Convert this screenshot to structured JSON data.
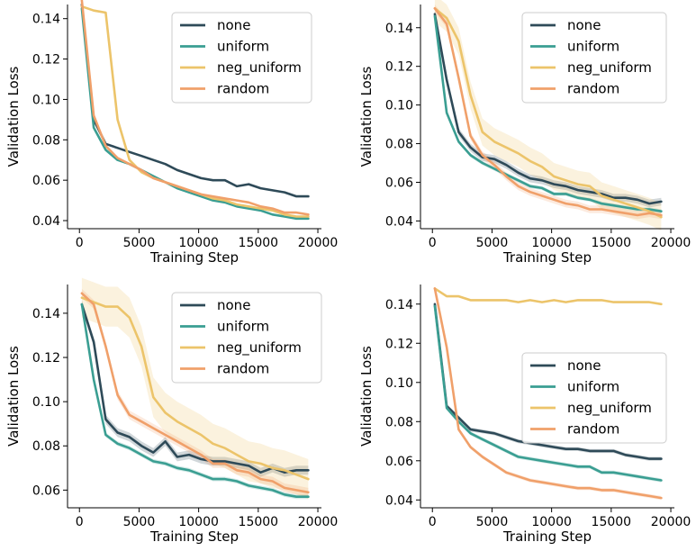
{
  "figure": {
    "background": "#ffffff"
  },
  "chart_data": [
    {
      "type": "line",
      "xlabel": "Training Step",
      "ylabel": "Validation Loss",
      "xlim": [
        -1000,
        20300
      ],
      "ylim": [
        0.036,
        0.147
      ],
      "xticks": [
        0,
        5000,
        10000,
        15000,
        20000
      ],
      "yticks": [
        0.04,
        0.06,
        0.08,
        0.1,
        0.12,
        0.14
      ],
      "grid": false,
      "legend": "top-right",
      "x": [
        200,
        1200,
        2200,
        3200,
        4200,
        5200,
        6200,
        7200,
        8200,
        9200,
        10200,
        11200,
        12200,
        13200,
        14200,
        15200,
        16200,
        17200,
        18200,
        19200
      ],
      "series": [
        {
          "name": "none",
          "color": "#2e4a58",
          "values": [
            0.147,
            0.09,
            0.078,
            0.076,
            0.074,
            0.072,
            0.07,
            0.068,
            0.065,
            0.063,
            0.061,
            0.06,
            0.06,
            0.057,
            0.058,
            0.056,
            0.055,
            0.054,
            0.052,
            0.052
          ],
          "band": 0
        },
        {
          "name": "uniform",
          "color": "#3a9e92",
          "values": [
            0.145,
            0.086,
            0.075,
            0.07,
            0.068,
            0.065,
            0.062,
            0.059,
            0.056,
            0.054,
            0.052,
            0.05,
            0.049,
            0.047,
            0.046,
            0.045,
            0.043,
            0.042,
            0.041,
            0.041
          ],
          "band": 0
        },
        {
          "name": "neg_uniform",
          "color": "#ecc46a",
          "values": [
            0.146,
            0.144,
            0.143,
            0.09,
            0.07,
            0.064,
            0.061,
            0.059,
            0.057,
            0.055,
            0.053,
            0.051,
            0.05,
            0.048,
            0.047,
            0.046,
            0.045,
            0.043,
            0.042,
            0.042
          ],
          "band": 0
        },
        {
          "name": "random",
          "color": "#f0a06a",
          "values": [
            0.149,
            0.092,
            0.077,
            0.071,
            0.068,
            0.065,
            0.061,
            0.059,
            0.057,
            0.055,
            0.053,
            0.052,
            0.051,
            0.05,
            0.049,
            0.047,
            0.046,
            0.044,
            0.044,
            0.043
          ],
          "band": 0
        }
      ]
    },
    {
      "type": "line",
      "xlabel": "Training Step",
      "ylabel": "Validation Loss",
      "xlim": [
        -1000,
        20300
      ],
      "ylim": [
        0.036,
        0.152
      ],
      "xticks": [
        0,
        5000,
        10000,
        15000,
        20000
      ],
      "yticks": [
        0.04,
        0.06,
        0.08,
        0.1,
        0.12,
        0.14
      ],
      "grid": false,
      "legend": "top-right",
      "x": [
        200,
        1200,
        2200,
        3200,
        4200,
        5200,
        6200,
        7200,
        8200,
        9200,
        10200,
        11200,
        12200,
        13200,
        14200,
        15200,
        16200,
        17200,
        18200,
        19200
      ],
      "series": [
        {
          "name": "none",
          "color": "#2e4a58",
          "values": [
            0.147,
            0.113,
            0.086,
            0.078,
            0.073,
            0.072,
            0.069,
            0.065,
            0.062,
            0.061,
            0.059,
            0.058,
            0.056,
            0.055,
            0.054,
            0.052,
            0.052,
            0.051,
            0.049,
            0.05
          ],
          "band": 0.002
        },
        {
          "name": "uniform",
          "color": "#3a9e92",
          "values": [
            0.146,
            0.096,
            0.081,
            0.074,
            0.07,
            0.067,
            0.064,
            0.061,
            0.058,
            0.057,
            0.054,
            0.054,
            0.052,
            0.051,
            0.049,
            0.048,
            0.047,
            0.046,
            0.046,
            0.045
          ],
          "band": 0.001
        },
        {
          "name": "neg_uniform",
          "color": "#ecc46a",
          "values": [
            0.15,
            0.145,
            0.133,
            0.105,
            0.086,
            0.081,
            0.078,
            0.075,
            0.071,
            0.068,
            0.063,
            0.061,
            0.059,
            0.058,
            0.053,
            0.051,
            0.049,
            0.047,
            0.045,
            0.042
          ],
          "band": 0.007
        },
        {
          "name": "random",
          "color": "#f0a06a",
          "values": [
            0.15,
            0.142,
            0.114,
            0.084,
            0.074,
            0.069,
            0.063,
            0.058,
            0.055,
            0.053,
            0.051,
            0.049,
            0.048,
            0.046,
            0.046,
            0.045,
            0.044,
            0.043,
            0.044,
            0.043
          ],
          "band": 0.002
        }
      ]
    },
    {
      "type": "line",
      "xlabel": "Training Step",
      "ylabel": "Validation Loss",
      "xlim": [
        -1000,
        20300
      ],
      "ylim": [
        0.052,
        0.153
      ],
      "xticks": [
        0,
        5000,
        10000,
        15000,
        20000
      ],
      "yticks": [
        0.06,
        0.08,
        0.1,
        0.12,
        0.14
      ],
      "grid": false,
      "legend": "top-right",
      "x": [
        200,
        1200,
        2200,
        3200,
        4200,
        5200,
        6200,
        7200,
        8200,
        9200,
        10200,
        11200,
        12200,
        13200,
        14200,
        15200,
        16200,
        17200,
        18200,
        19200
      ],
      "series": [
        {
          "name": "none",
          "color": "#2e4a58",
          "values": [
            0.144,
            0.127,
            0.092,
            0.086,
            0.084,
            0.08,
            0.077,
            0.082,
            0.075,
            0.076,
            0.074,
            0.073,
            0.073,
            0.072,
            0.071,
            0.068,
            0.07,
            0.068,
            0.069,
            0.069
          ],
          "band": 0.002
        },
        {
          "name": "uniform",
          "color": "#3a9e92",
          "values": [
            0.144,
            0.11,
            0.085,
            0.081,
            0.079,
            0.076,
            0.073,
            0.072,
            0.07,
            0.069,
            0.067,
            0.065,
            0.065,
            0.064,
            0.062,
            0.061,
            0.06,
            0.058,
            0.057,
            0.057
          ],
          "band": 0.001
        },
        {
          "name": "neg_uniform",
          "color": "#ecc46a",
          "values": [
            0.147,
            0.145,
            0.143,
            0.143,
            0.138,
            0.125,
            0.102,
            0.095,
            0.091,
            0.088,
            0.085,
            0.081,
            0.079,
            0.076,
            0.073,
            0.072,
            0.07,
            0.069,
            0.067,
            0.065
          ],
          "band": 0.009
        },
        {
          "name": "random",
          "color": "#f0a06a",
          "values": [
            0.149,
            0.144,
            0.125,
            0.103,
            0.094,
            0.091,
            0.088,
            0.085,
            0.082,
            0.079,
            0.076,
            0.072,
            0.072,
            0.069,
            0.068,
            0.065,
            0.064,
            0.061,
            0.06,
            0.059
          ],
          "band": 0.002
        }
      ]
    },
    {
      "type": "line",
      "xlabel": "Training Step",
      "ylabel": "Validation Loss",
      "xlim": [
        -1000,
        20300
      ],
      "ylim": [
        0.036,
        0.15
      ],
      "xticks": [
        0,
        5000,
        10000,
        15000,
        20000
      ],
      "yticks": [
        0.04,
        0.06,
        0.08,
        0.1,
        0.12,
        0.14
      ],
      "grid": false,
      "legend": "center-right",
      "x": [
        200,
        1200,
        2200,
        3200,
        4200,
        5200,
        6200,
        7200,
        8200,
        9200,
        10200,
        11200,
        12200,
        13200,
        14200,
        15200,
        16200,
        17200,
        18200,
        19200
      ],
      "series": [
        {
          "name": "none",
          "color": "#2e4a58",
          "values": [
            0.14,
            0.088,
            0.082,
            0.076,
            0.075,
            0.074,
            0.072,
            0.07,
            0.069,
            0.068,
            0.067,
            0.066,
            0.066,
            0.065,
            0.065,
            0.065,
            0.063,
            0.062,
            0.061,
            0.061
          ],
          "band": 0.001
        },
        {
          "name": "uniform",
          "color": "#3a9e92",
          "values": [
            0.139,
            0.087,
            0.08,
            0.074,
            0.071,
            0.068,
            0.065,
            0.062,
            0.061,
            0.06,
            0.059,
            0.058,
            0.057,
            0.057,
            0.054,
            0.054,
            0.053,
            0.052,
            0.051,
            0.05
          ],
          "band": 0.001
        },
        {
          "name": "neg_uniform",
          "color": "#ecc46a",
          "values": [
            0.148,
            0.144,
            0.144,
            0.142,
            0.142,
            0.142,
            0.142,
            0.141,
            0.142,
            0.141,
            0.142,
            0.141,
            0.142,
            0.142,
            0.142,
            0.141,
            0.141,
            0.141,
            0.141,
            0.14
          ],
          "band": 0
        },
        {
          "name": "random",
          "color": "#f0a06a",
          "values": [
            0.148,
            0.118,
            0.076,
            0.067,
            0.062,
            0.058,
            0.054,
            0.052,
            0.05,
            0.049,
            0.048,
            0.047,
            0.046,
            0.046,
            0.045,
            0.045,
            0.044,
            0.043,
            0.042,
            0.041
          ],
          "band": 0.001
        }
      ]
    }
  ]
}
